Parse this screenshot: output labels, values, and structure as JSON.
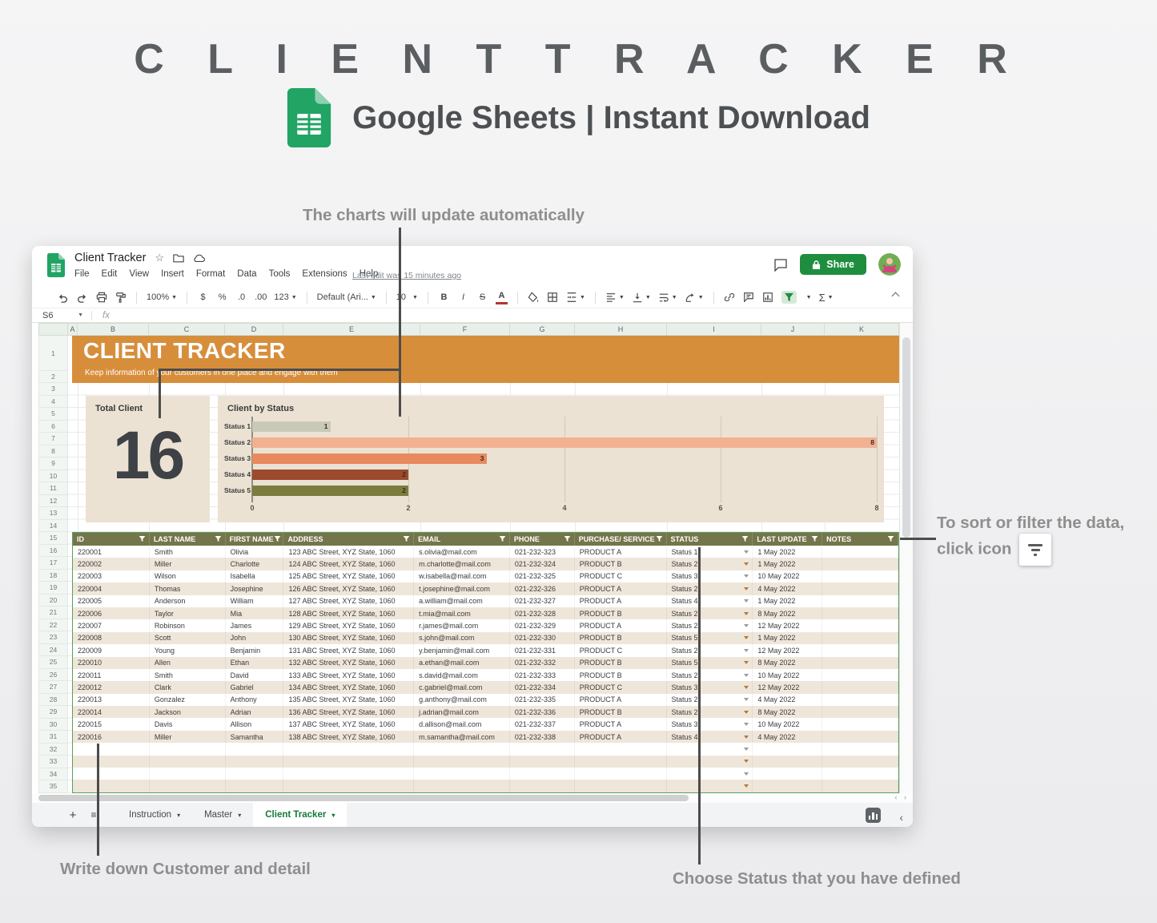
{
  "header": {
    "title": "C L I E N T   T R A C K E R",
    "subtitle": "Google Sheets | Instant Download"
  },
  "annotations": {
    "charts_note": "The charts will update automatically",
    "sort_note_line1": "To sort or filter the data,",
    "sort_note_line2": "click icon",
    "write_note": "Write down Customer and detail",
    "status_note": "Choose Status that you have defined"
  },
  "app": {
    "doc_title": "Client Tracker",
    "menus": [
      "File",
      "Edit",
      "View",
      "Insert",
      "Format",
      "Data",
      "Tools",
      "Extensions",
      "Help"
    ],
    "last_edit": "Last edit was 15 minutes ago",
    "share_label": "Share",
    "name_box": "S6",
    "fx_label": "fx",
    "toolbar": {
      "zoom": "100%",
      "currency": "$",
      "percent": "%",
      "dec0": ".0",
      "dec00": ".00",
      "more_formats": "123",
      "font": "Default (Ari...",
      "size": "10",
      "bold": "B",
      "italic": "I",
      "strike": "S",
      "color": "A",
      "sum": "Σ"
    },
    "tabs": [
      {
        "label": "Instruction",
        "active": false
      },
      {
        "label": "Master",
        "active": false
      },
      {
        "label": "Client Tracker",
        "active": true
      }
    ]
  },
  "sheet": {
    "columns": [
      "A",
      "B",
      "C",
      "D",
      "E",
      "F",
      "G",
      "H",
      "I",
      "J",
      "K"
    ],
    "row_count": 35,
    "banner": {
      "title": "CLIENT TRACKER",
      "subtitle": "Keep information of your customers in one place and engage with them"
    },
    "total_card": {
      "label": "Total Client",
      "value": "16"
    }
  },
  "chart_data": {
    "type": "bar",
    "orientation": "horizontal",
    "title": "Client by Status",
    "categories": [
      "Status 1",
      "Status 2",
      "Status 3",
      "Status 4",
      "Status 5"
    ],
    "values": [
      1,
      8,
      3,
      2,
      2
    ],
    "colors": [
      "#c9c9b8",
      "#f2b191",
      "#e88a5e",
      "#9c4a2d",
      "#7c7c3e"
    ],
    "xlim": [
      0,
      8
    ],
    "xticks": [
      0,
      2,
      4,
      6,
      8
    ],
    "grid": true,
    "value_labels": true,
    "legend": false
  },
  "table": {
    "headers": [
      "ID",
      "LAST NAME",
      "FIRST NAME",
      "ADDRESS",
      "EMAIL",
      "PHONE",
      "PURCHASE/ SERVICE",
      "STATUS",
      "LAST UPDATE",
      "NOTES"
    ],
    "rows": [
      [
        "220001",
        "Smith",
        "Olivia",
        "123 ABC Street, XYZ State, 1060",
        "s.olivia@mail.com",
        "021-232-323",
        "PRODUCT A",
        "Status 1",
        "1 May 2022",
        ""
      ],
      [
        "220002",
        "Miller",
        "Charlotte",
        "124 ABC Street, XYZ State, 1060",
        "m.charlotte@mail.com",
        "021-232-324",
        "PRODUCT B",
        "Status 2",
        "1 May 2022",
        ""
      ],
      [
        "220003",
        "Wilson",
        "Isabella",
        "125 ABC Street, XYZ State, 1060",
        "w.isabella@mail.com",
        "021-232-325",
        "PRODUCT C",
        "Status 3",
        "10 May 2022",
        ""
      ],
      [
        "220004",
        "Thomas",
        "Josephine",
        "126 ABC Street, XYZ State, 1060",
        "t.josephine@mail.com",
        "021-232-326",
        "PRODUCT A",
        "Status 2",
        "4 May 2022",
        ""
      ],
      [
        "220005",
        "Anderson",
        "William",
        "127 ABC Street, XYZ State, 1060",
        "a.william@mail.com",
        "021-232-327",
        "PRODUCT A",
        "Status 4",
        "1 May 2022",
        ""
      ],
      [
        "220006",
        "Taylor",
        "Mia",
        "128 ABC Street, XYZ State, 1060",
        "t.mia@mail.com",
        "021-232-328",
        "PRODUCT B",
        "Status 2",
        "8 May 2022",
        ""
      ],
      [
        "220007",
        "Robinson",
        "James",
        "129 ABC Street, XYZ State, 1060",
        "r.james@mail.com",
        "021-232-329",
        "PRODUCT A",
        "Status 2",
        "12 May 2022",
        ""
      ],
      [
        "220008",
        "Scott",
        "John",
        "130 ABC Street, XYZ State, 1060",
        "s.john@mail.com",
        "021-232-330",
        "PRODUCT B",
        "Status 5",
        "1 May 2022",
        ""
      ],
      [
        "220009",
        "Young",
        "Benjamin",
        "131 ABC Street, XYZ State, 1060",
        "y.benjamin@mail.com",
        "021-232-331",
        "PRODUCT C",
        "Status 2",
        "12 May 2022",
        ""
      ],
      [
        "220010",
        "Allen",
        "Ethan",
        "132 ABC Street, XYZ State, 1060",
        "a.ethan@mail.com",
        "021-232-332",
        "PRODUCT B",
        "Status 5",
        "8 May 2022",
        ""
      ],
      [
        "220011",
        "Smith",
        "David",
        "133 ABC Street, XYZ State, 1060",
        "s.david@mail.com",
        "021-232-333",
        "PRODUCT B",
        "Status 2",
        "10 May 2022",
        ""
      ],
      [
        "220012",
        "Clark",
        "Gabriel",
        "134 ABC Street, XYZ State, 1060",
        "c.gabriel@mail.com",
        "021-232-334",
        "PRODUCT C",
        "Status 3",
        "12 May 2022",
        ""
      ],
      [
        "220013",
        "Gonzalez",
        "Anthony",
        "135 ABC Street, XYZ State, 1060",
        "g.anthony@mail.com",
        "021-232-335",
        "PRODUCT A",
        "Status 2",
        "4 May 2022",
        ""
      ],
      [
        "220014",
        "Jackson",
        "Adrian",
        "136 ABC Street, XYZ State, 1060",
        "j.adrian@mail.com",
        "021-232-336",
        "PRODUCT B",
        "Status 2",
        "8 May 2022",
        ""
      ],
      [
        "220015",
        "Davis",
        "Allison",
        "137 ABC Street, XYZ State, 1060",
        "d.allison@mail.com",
        "021-232-337",
        "PRODUCT A",
        "Status 3",
        "10 May 2022",
        ""
      ],
      [
        "220016",
        "Miller",
        "Samantha",
        "138 ABC Street, XYZ State, 1060",
        "m.samantha@mail.com",
        "021-232-338",
        "PRODUCT A",
        "Status 4",
        "4 May 2022",
        ""
      ]
    ],
    "empty_row_count": 4
  },
  "colors": {
    "banner": "#d78e3b",
    "panel": "#ebe2d4",
    "table_header": "#75754b",
    "row_alt": "#efe6da",
    "accent_green": "#1e8e3e",
    "active_tab_text": "#157a38"
  }
}
